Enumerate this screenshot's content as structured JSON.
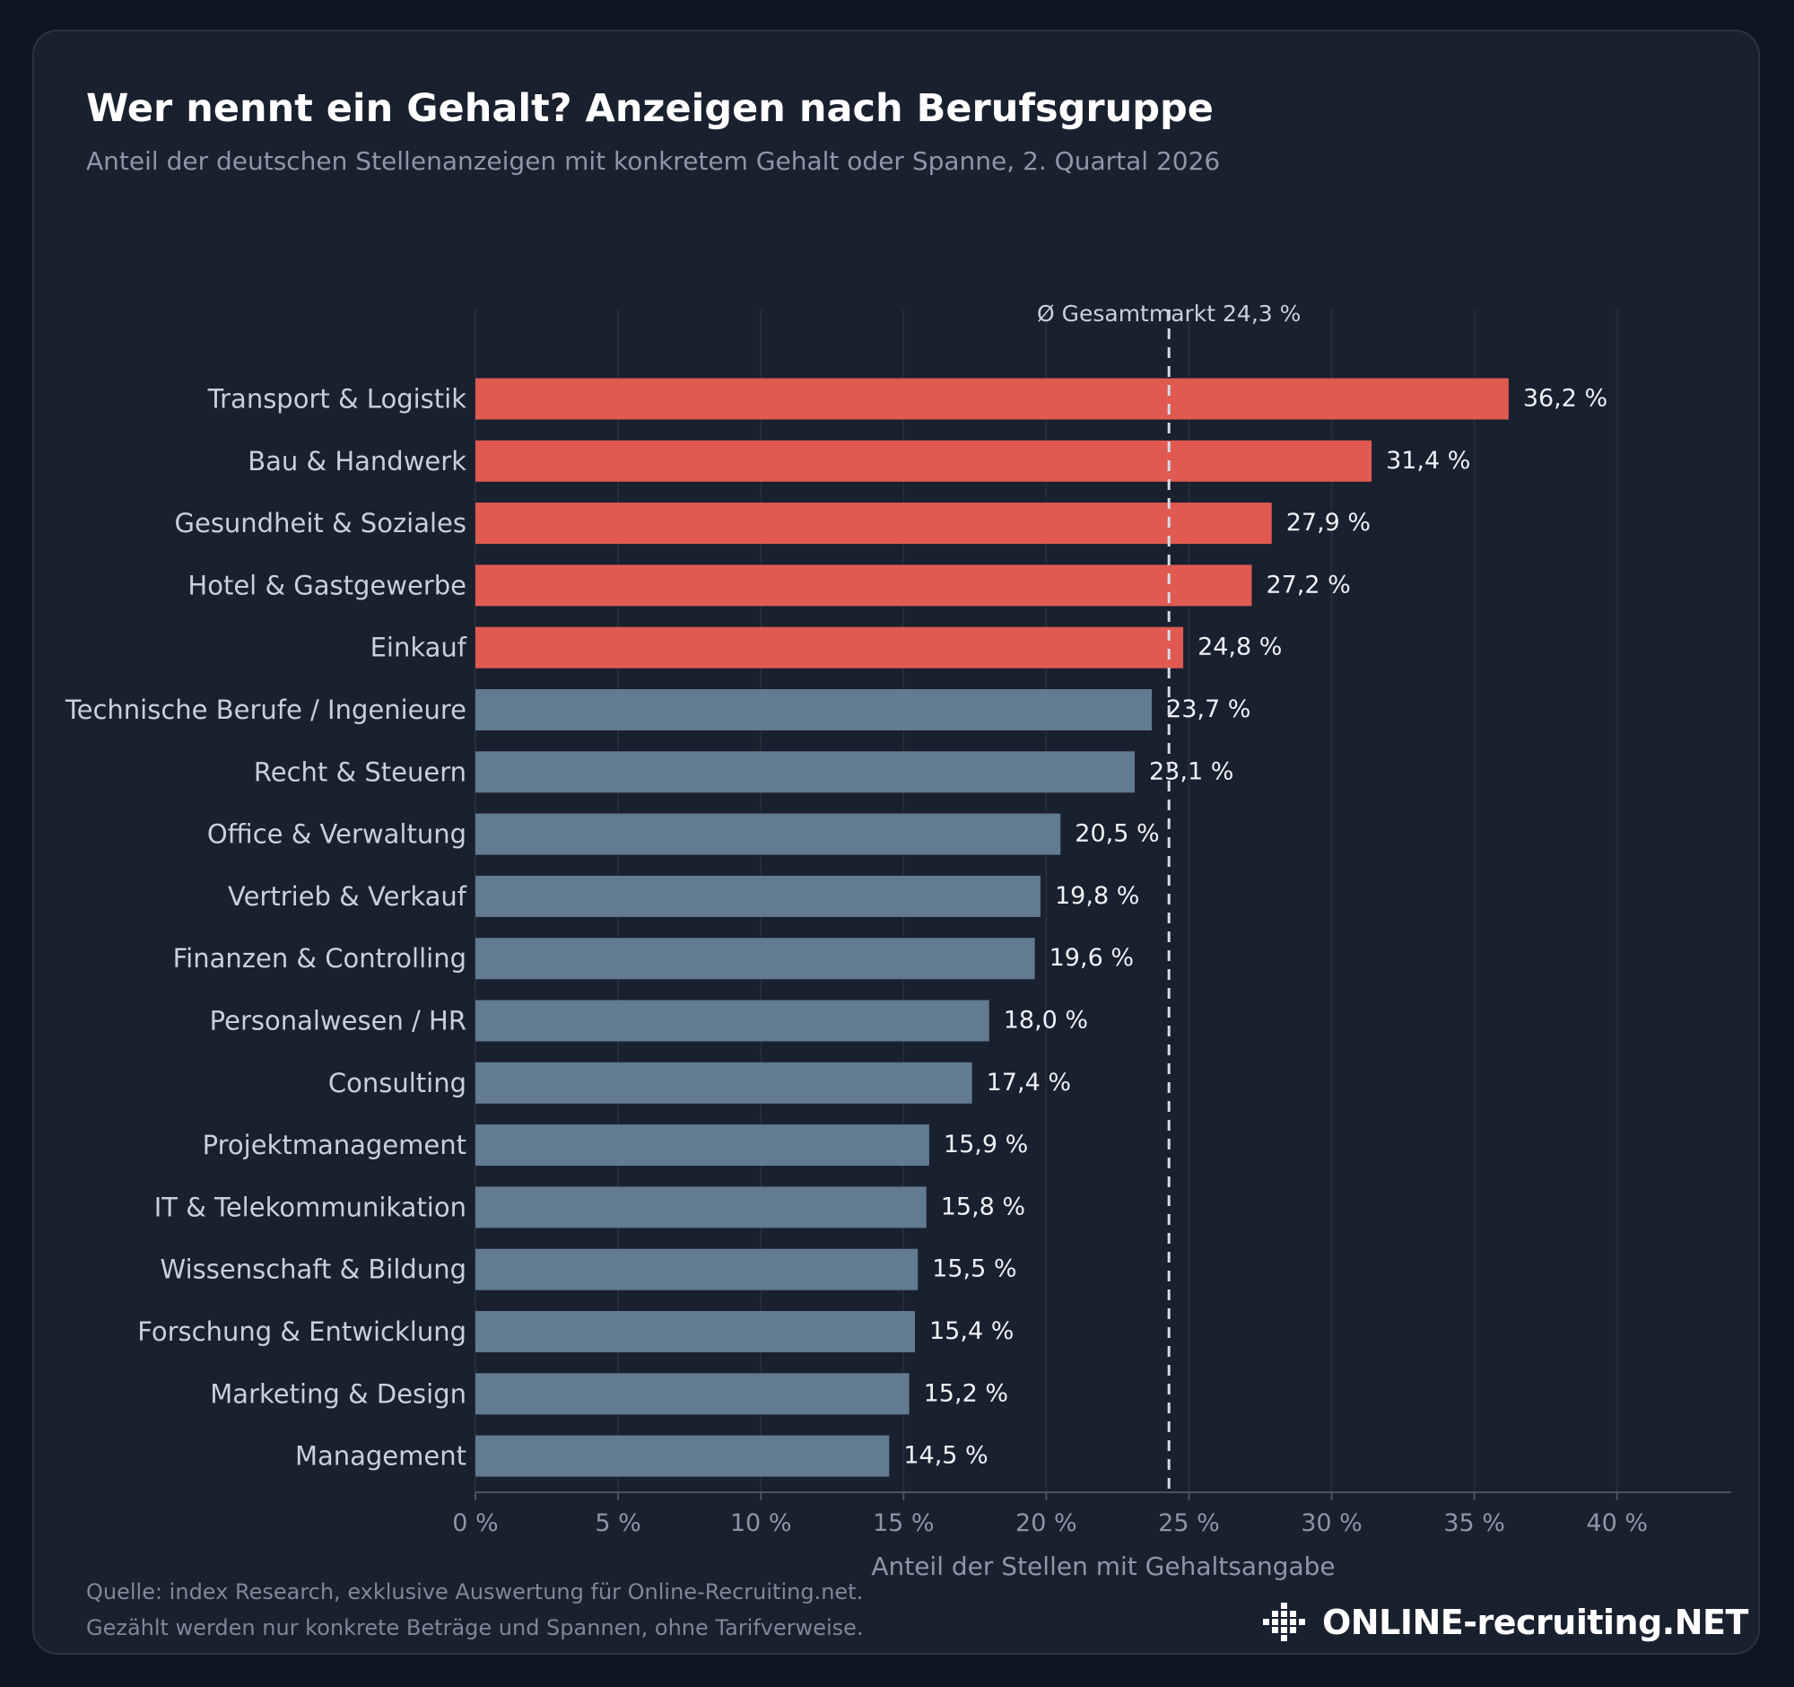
{
  "header": {
    "title": "Wer nennt ein Gehalt? Anzeigen nach Berufsgruppe",
    "subtitle": "Anteil der deutschen Stellenanzeigen mit konkretem Gehalt oder Spanne, 2. Quartal 2026"
  },
  "footer": {
    "source": "Quelle: index Research, exklusive Auswertung für Online-Recruiting.net.",
    "note": "Gezählt werden nur konkrete Beträge und Spannen, ohne Tarifverweise.",
    "logo_text": "ONLINE-recruiting.NET"
  },
  "colors": {
    "highlight_bar": "#e05a52",
    "default_bar": "#627a92",
    "background": "#19202e",
    "reference_line": "#d6dce6"
  },
  "chart_data": {
    "type": "bar",
    "orientation": "horizontal",
    "categories": [
      "Transport & Logistik",
      "Bau & Handwerk",
      "Gesundheit & Soziales",
      "Hotel & Gastgewerbe",
      "Einkauf",
      "Technische Berufe / Ingenieure",
      "Recht & Steuern",
      "Office & Verwaltung",
      "Vertrieb & Verkauf",
      "Finanzen & Controlling",
      "Personalwesen / HR",
      "Consulting",
      "Projektmanagement",
      "IT & Telekommunikation",
      "Wissenschaft & Bildung",
      "Forschung & Entwicklung",
      "Marketing & Design",
      "Management"
    ],
    "values": [
      36.2,
      31.4,
      27.9,
      27.2,
      24.8,
      23.7,
      23.1,
      20.5,
      19.8,
      19.6,
      18.0,
      17.4,
      15.9,
      15.8,
      15.5,
      15.4,
      15.2,
      14.5
    ],
    "value_labels": [
      "36,2 %",
      "31,4 %",
      "27,9 %",
      "27,2 %",
      "24,8 %",
      "23,7 %",
      "23,1 %",
      "20,5 %",
      "19,8 %",
      "19,6 %",
      "18,0 %",
      "17,4 %",
      "15,9 %",
      "15,8 %",
      "15,5 %",
      "15,4 %",
      "15,2 %",
      "14,5 %"
    ],
    "highlight_above_reference": true,
    "reference": {
      "value": 24.3,
      "label": "Ø Gesamtmarkt  24,3 %"
    },
    "xlabel": "Anteil der Stellen mit Gehaltsangabe",
    "ylabel": "",
    "xlim": [
      0,
      44
    ],
    "xticks": [
      0,
      5,
      10,
      15,
      20,
      25,
      30,
      35,
      40
    ],
    "xtick_labels": [
      "0 %",
      "5 %",
      "10 %",
      "15 %",
      "20 %",
      "25 %",
      "30 %",
      "35 %",
      "40 %"
    ],
    "grid": "vertical"
  }
}
